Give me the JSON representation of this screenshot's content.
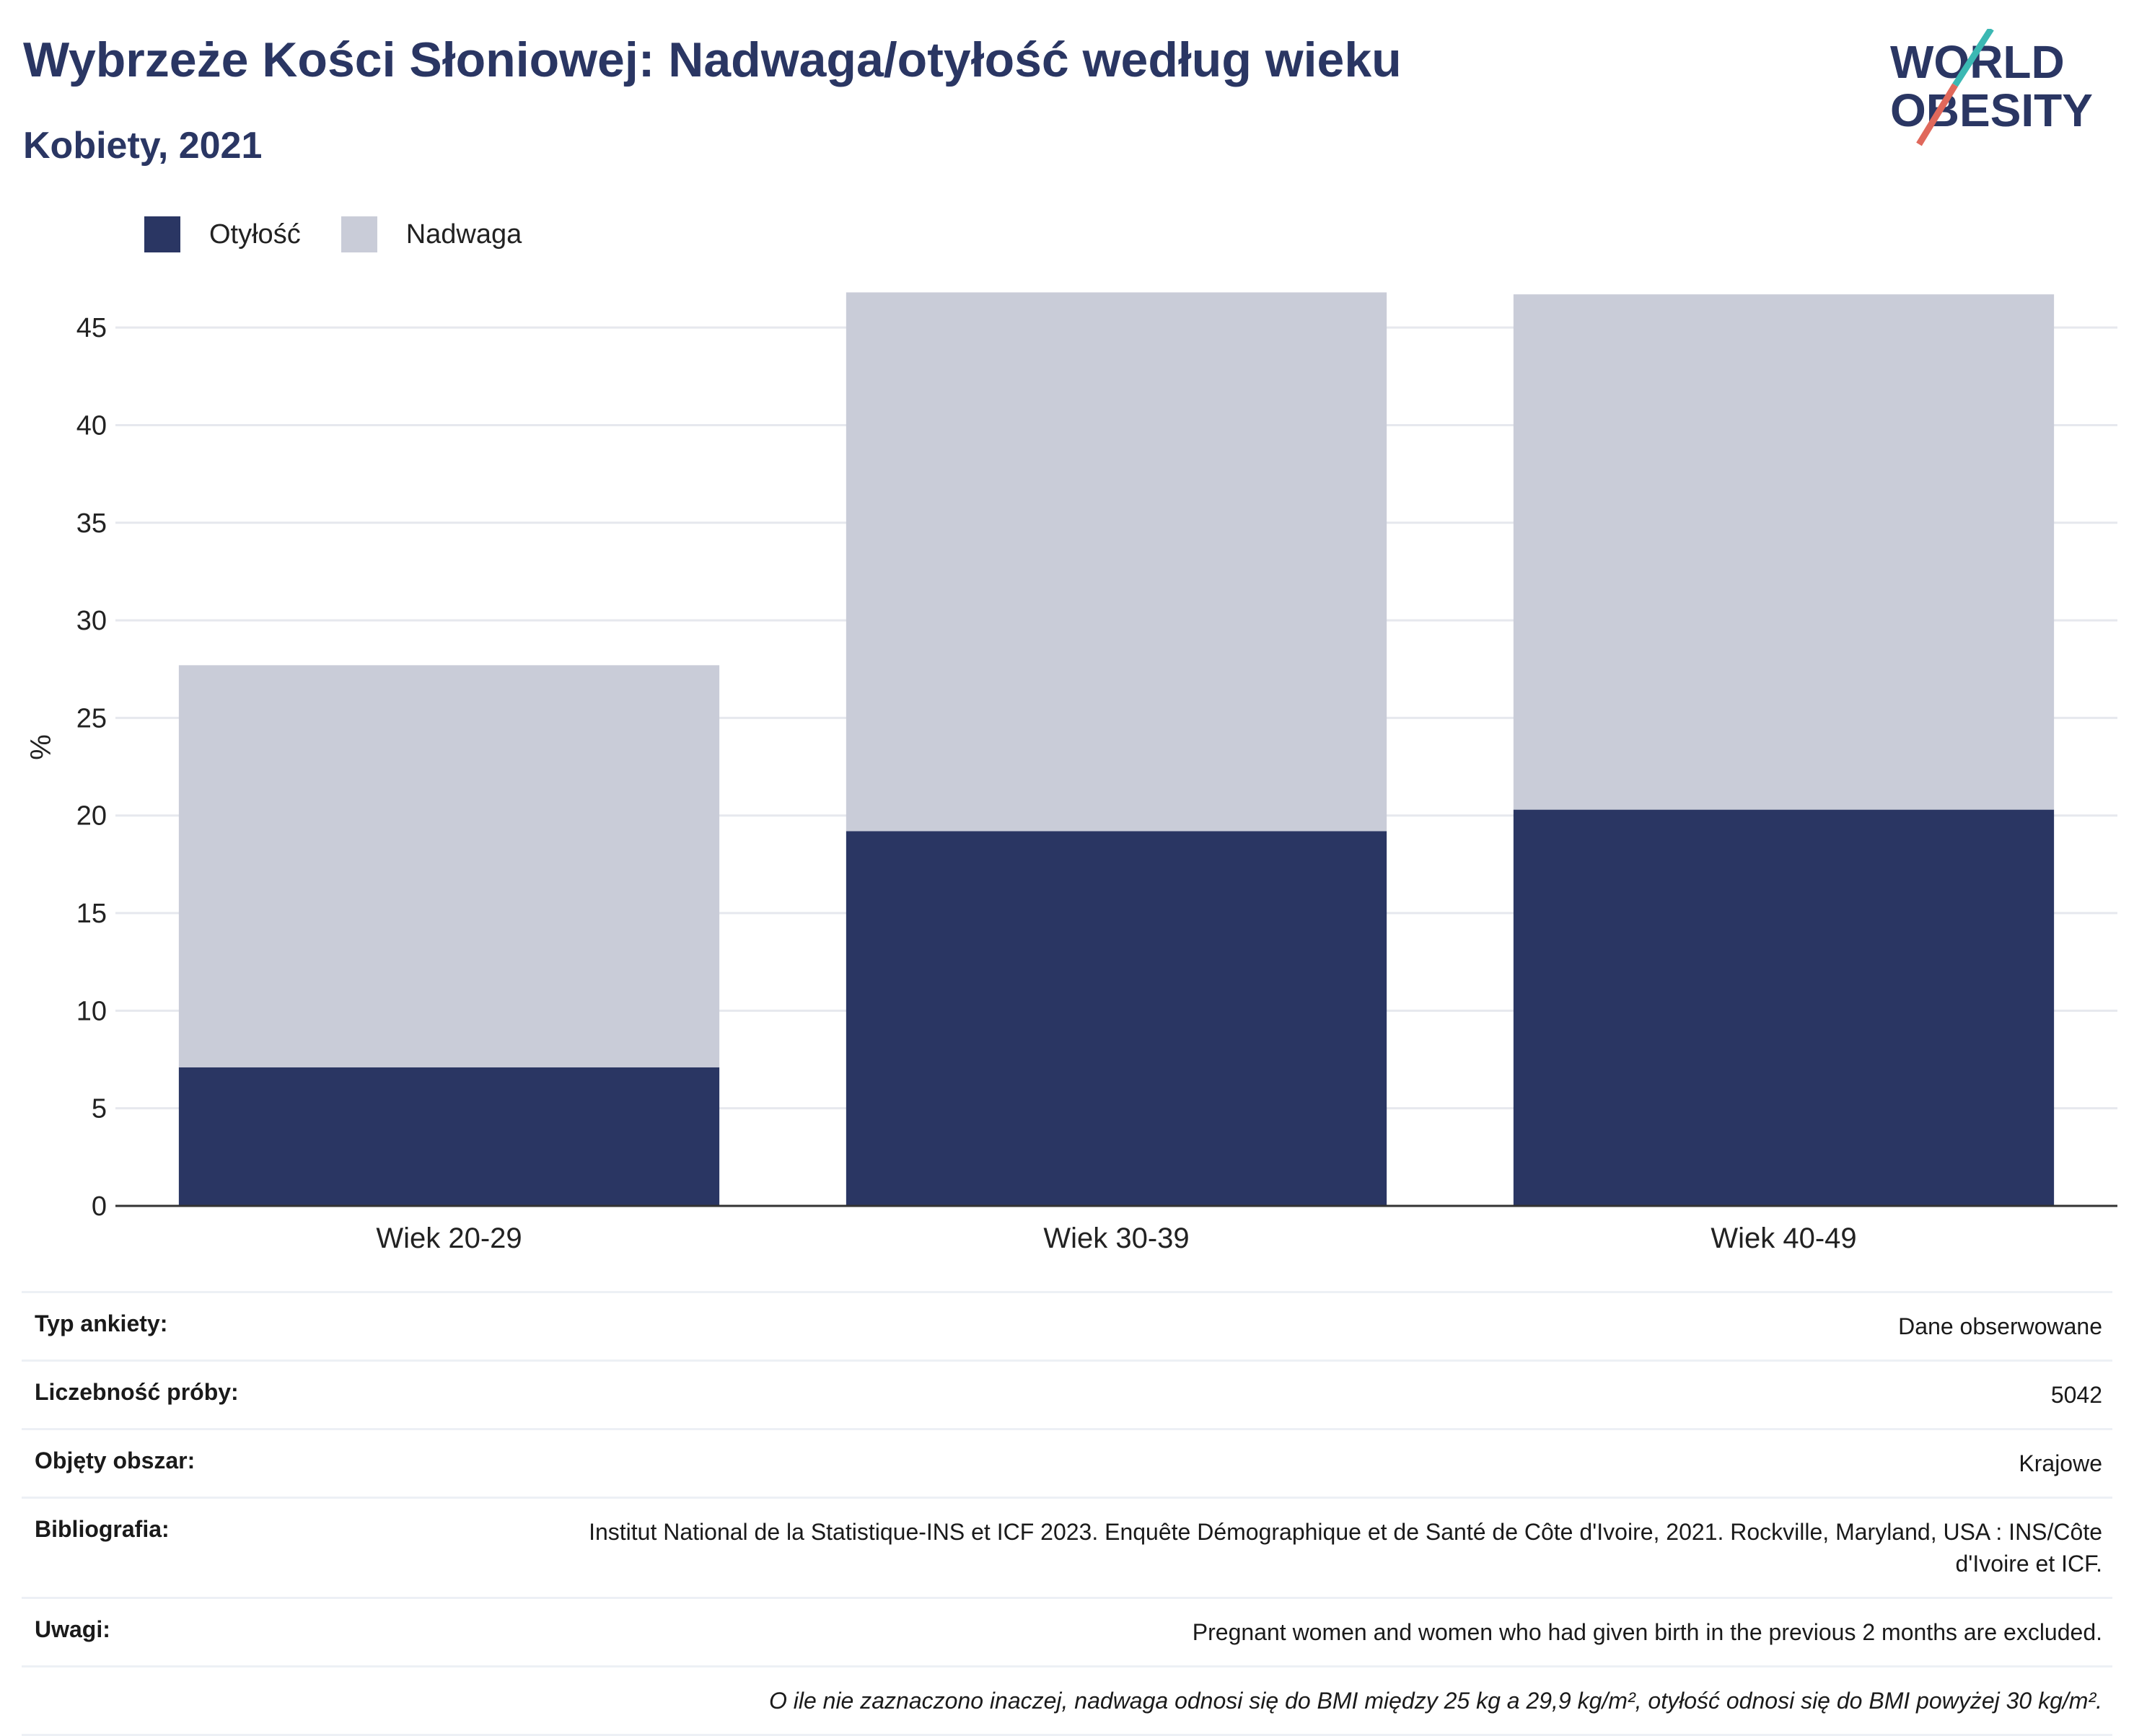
{
  "header": {
    "title": "Wybrzeże Kości Słoniowej: Nadwaga/otyłość według wieku",
    "subtitle": "Kobiety, 2021"
  },
  "logo": {
    "line1": "WORLD",
    "line2": "OBESITY",
    "icon": "world-obesity-logo"
  },
  "colors": {
    "obesity": "#2a3663",
    "overweight": "#c9ccd8",
    "title": "#2a3663",
    "accent_teal": "#3bb8b3",
    "accent_red": "#e0685b"
  },
  "chart_data": {
    "type": "bar",
    "stacked": true,
    "categories": [
      "Wiek 20-29",
      "Wiek 30-39",
      "Wiek 40-49"
    ],
    "series": [
      {
        "name": "Otyłość",
        "values": [
          7.1,
          19.2,
          20.3
        ]
      },
      {
        "name": "Nadwaga",
        "values": [
          20.6,
          27.6,
          26.4
        ]
      }
    ],
    "ylabel": "%",
    "ylim": [
      0,
      47
    ],
    "yticks": [
      0,
      5,
      10,
      15,
      20,
      25,
      30,
      35,
      40,
      45
    ],
    "grid": true,
    "legend": "top-left"
  },
  "info": {
    "rows": [
      {
        "label": "Typ ankiety:",
        "value": "Dane obserwowane"
      },
      {
        "label": "Liczebność próby:",
        "value": "5042"
      },
      {
        "label": "Objęty obszar:",
        "value": "Krajowe"
      },
      {
        "label": "Bibliografia:",
        "value": "Institut National de la Statistique-INS et ICF 2023. Enquête Démographique et de Santé de Côte d'Ivoire, 2021. Rockville, Maryland, USA : INS/Côte d'Ivoire et ICF."
      },
      {
        "label": "Uwagi:",
        "value": "Pregnant women and women who had given birth in the previous 2 months are excluded."
      }
    ],
    "note": "O ile nie zaznaczono inaczej, nadwaga odnosi się do BMI między 25 kg a 29,9 kg/m², otyłość odnosi się do BMI powyżej 30 kg/m²."
  }
}
